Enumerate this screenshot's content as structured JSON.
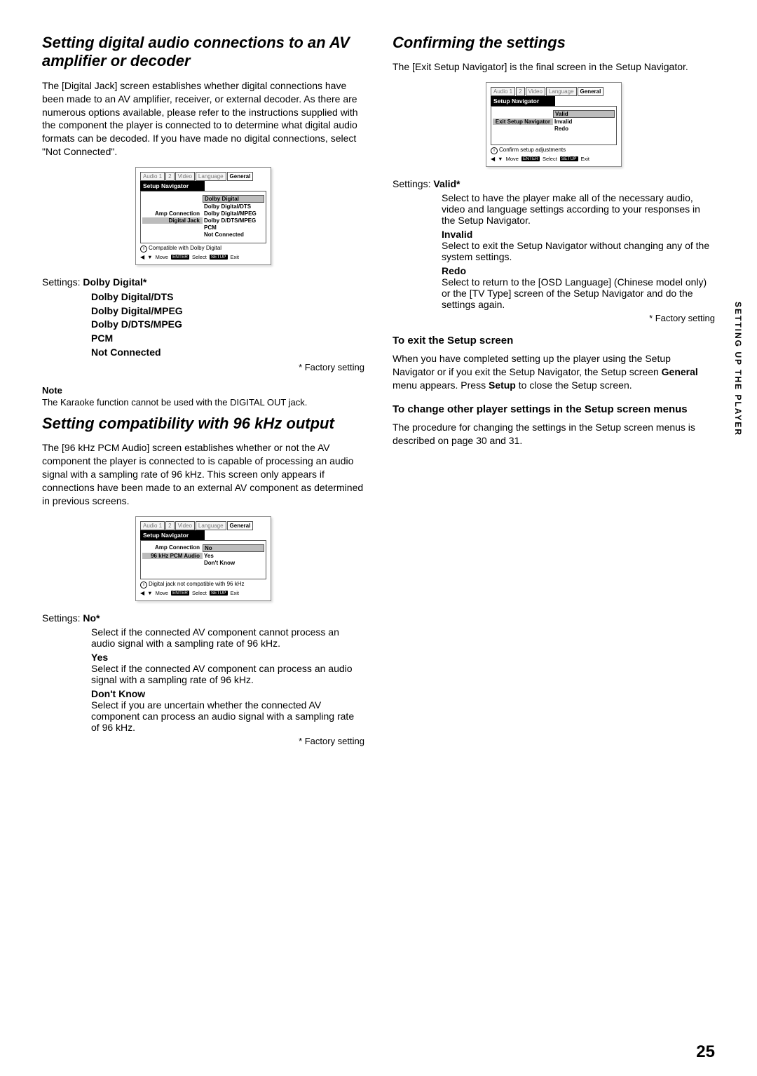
{
  "left": {
    "h1": "Setting digital audio connections to an AV amplifier or decoder",
    "p1": "The [Digital Jack] screen establishes whether digital connections have been made to an AV amplifier, receiver, or external decoder. As there are numerous options available, please refer to the instructions supplied with the component the player is connected to to determine what digital audio formats can be decoded. If you have made no digital connections, select \"Not Connected\".",
    "osd1": {
      "tabs": [
        "Audio 1",
        "2",
        "Video",
        "Language",
        "General"
      ],
      "active_tab": "General",
      "header": "Setup Navigator",
      "rows": [
        {
          "label": "",
          "val": "Dolby Digital",
          "val_sel": true
        },
        {
          "label": "",
          "val": "Dolby Digital/DTS"
        },
        {
          "label": "Amp Connection",
          "val": "Dolby Digital/MPEG"
        },
        {
          "label": "Digital Jack",
          "label_sel": true,
          "val": "Dolby D/DTS/MPEG"
        },
        {
          "label": "",
          "val": "PCM"
        },
        {
          "label": "",
          "val": "Not Connected"
        }
      ],
      "info": "Compatible with Dolby Digital",
      "footer": {
        "move": "Move",
        "enter": "ENTER",
        "select": "Select",
        "setup": "SETUP",
        "exit": "Exit"
      }
    },
    "settings1_label": "Settings:",
    "settings1_first": "Dolby Digital*",
    "settings1_opts": [
      "Dolby Digital/DTS",
      "Dolby Digital/MPEG",
      "Dolby D/DTS/MPEG",
      "PCM",
      "Not Connected"
    ],
    "factory": "* Factory setting",
    "note_label": "Note",
    "note_text": "The Karaoke function cannot be used with the DIGITAL OUT jack.",
    "h2": "Setting compatibility with 96 kHz output",
    "p2": "The [96 kHz PCM Audio] screen establishes whether or not the AV component the player is connected to is capable of processing an audio signal with a sampling rate of 96 kHz. This screen only appears if connections have been made to an external AV component as determined in previous screens.",
    "osd2": {
      "tabs": [
        "Audio 1",
        "2",
        "Video",
        "Language",
        "General"
      ],
      "active_tab": "General",
      "header": "Setup Navigator",
      "rows": [
        {
          "label": "Amp Connection",
          "val": "No",
          "val_sel": true
        },
        {
          "label": "96 kHz PCM Audio",
          "label_sel": true,
          "val": "Yes"
        },
        {
          "label": "",
          "val": "Don't Know"
        }
      ],
      "info": "Digital jack not compatible with 96 kHz",
      "footer": {
        "move": "Move",
        "enter": "ENTER",
        "select": "Select",
        "setup": "SETUP",
        "exit": "Exit"
      }
    },
    "settings2_label": "Settings:",
    "settings2": [
      {
        "t": "No*",
        "d": "Select if the connected AV component cannot process an audio signal with a sampling rate of 96 kHz."
      },
      {
        "t": "Yes",
        "d": "Select if the connected AV component can process an audio signal with a sampling rate of 96 kHz."
      },
      {
        "t": "Don't Know",
        "d": "Select if you are uncertain whether the connected AV component can process an audio signal with a sampling rate of 96 kHz."
      }
    ]
  },
  "right": {
    "h1": "Confirming the settings",
    "p1": "The [Exit Setup Navigator] is the final screen in the Setup Navigator.",
    "osd3": {
      "tabs": [
        "Audio 1",
        "2",
        "Video",
        "Language",
        "General"
      ],
      "active_tab": "General",
      "header": "Setup Navigator",
      "rows": [
        {
          "label": "",
          "val": "Valid",
          "val_sel": true
        },
        {
          "label": "Exit Setup Navigator",
          "label_sel": true,
          "val": "Invalid"
        },
        {
          "label": "",
          "val": "Redo"
        }
      ],
      "info": "Confirm setup adjustments",
      "footer": {
        "move": "Move",
        "enter": "ENTER",
        "select": "Select",
        "setup": "SETUP",
        "exit": "Exit"
      }
    },
    "settings3_label": "Settings:",
    "settings3": [
      {
        "t": "Valid*",
        "d": "Select to have the player make all of the necessary audio, video and language settings according to your responses in the Setup Navigator."
      },
      {
        "t": "Invalid",
        "d": "Select to exit the Setup Navigator without changing any of the system settings."
      },
      {
        "t": "Redo",
        "d": "Select to return to the [OSD Language] (Chinese model only) or the [TV Type] screen of the Setup Navigator and do the settings again."
      }
    ],
    "factory": "* Factory setting",
    "sub1_t": "To exit the Setup screen",
    "sub1_p": "When you have completed setting up the player using the Setup Navigator or if you exit the Setup Navigator, the Setup screen General menu appears. Press Setup to close the Setup screen.",
    "sub2_t": "To change other player settings in the Setup screen menus",
    "sub2_p": "The procedure for changing the settings in the Setup screen menus is described on page 30 and 31."
  },
  "side_label": "SETTING UP THE PLAYER",
  "page_num": "25"
}
